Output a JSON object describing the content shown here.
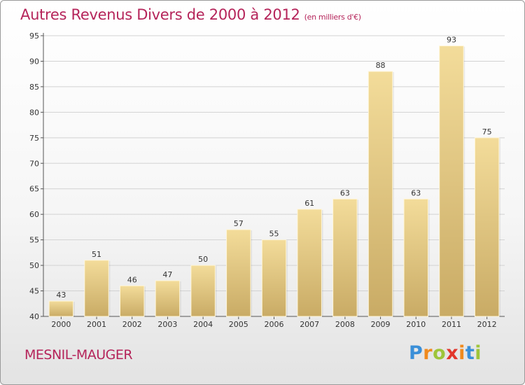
{
  "chart_data": {
    "type": "bar",
    "title": "Autres Revenus Divers de 2000 à 2012",
    "subtitle": "(en milliers d'€)",
    "categories": [
      "2000",
      "2001",
      "2002",
      "2003",
      "2004",
      "2005",
      "2006",
      "2007",
      "2008",
      "2009",
      "2010",
      "2011",
      "2012"
    ],
    "values": [
      43,
      51,
      46,
      47,
      50,
      57,
      55,
      61,
      63,
      88,
      63,
      93,
      75
    ],
    "ylim": [
      40,
      95
    ],
    "yticks": [
      40,
      45,
      50,
      55,
      60,
      65,
      70,
      75,
      80,
      85,
      90,
      95
    ],
    "grid": "horizontal",
    "bar_color": "#e8cf8a",
    "xlabel": "",
    "ylabel": ""
  },
  "footer": {
    "commune": "MESNIL-MAUGER"
  },
  "logo": {
    "parts": [
      "P",
      "r",
      "o",
      "x",
      "i",
      "t",
      "i"
    ]
  }
}
